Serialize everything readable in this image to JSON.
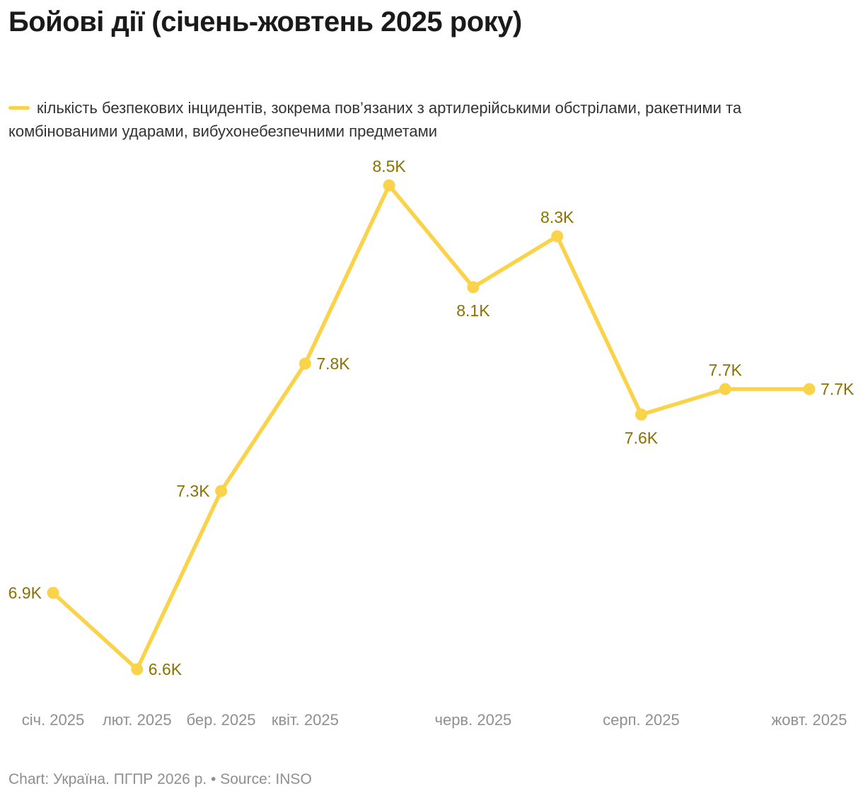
{
  "header": {
    "title": "Бойові дії (січень-жовтень 2025 року)"
  },
  "legend": {
    "label": "кількість безпекових інцидентів, зокрема пов’язаних з артилерійськими обстрілами, ракетними та комбінованими ударами, вибухонебезпечними предметами"
  },
  "footer": {
    "text": "Chart: Україна. ПГПР 2026 р. • Source: INSO"
  },
  "chart_data": {
    "type": "line",
    "title": "Бойові дії (січень-жовтень 2025 року)",
    "series_name": "кількість безпекових інцидентів, зокрема пов’язаних з артилерійськими обстрілами, ракетними та комбінованими ударами, вибухонебезпечними предметами",
    "points": [
      {
        "label": "6.9K",
        "value": 6.9,
        "label_pos": "left"
      },
      {
        "label": "6.6K",
        "value": 6.6,
        "label_pos": "right"
      },
      {
        "label": "7.3K",
        "value": 7.3,
        "label_pos": "left"
      },
      {
        "label": "7.8K",
        "value": 7.8,
        "label_pos": "right"
      },
      {
        "label": "8.5K",
        "value": 8.5,
        "label_pos": "above"
      },
      {
        "label": "8.1K",
        "value": 8.1,
        "label_pos": "below"
      },
      {
        "label": "8.3K",
        "value": 8.3,
        "label_pos": "above"
      },
      {
        "label": "7.6K",
        "value": 7.6,
        "label_pos": "below"
      },
      {
        "label": "7.7K",
        "value": 7.7,
        "label_pos": "above"
      },
      {
        "label": "7.7K",
        "value": 7.7,
        "label_pos": "right"
      }
    ],
    "x_tick_labels": [
      {
        "index": 0,
        "text": "січ. 2025"
      },
      {
        "index": 1,
        "text": "лют. 2025"
      },
      {
        "index": 2,
        "text": "бер. 2025"
      },
      {
        "index": 3,
        "text": "квіт. 2025"
      },
      {
        "index": 5,
        "text": "черв. 2025"
      },
      {
        "index": 7,
        "text": "серп. 2025"
      },
      {
        "index": 9,
        "text": "жовт. 2025"
      }
    ],
    "ylim": [
      6.6,
      8.5
    ],
    "grid": false,
    "legend_position": "top-left",
    "colors": {
      "line": "#FBD34A",
      "marker": "#FBD34A",
      "data_label": "#8A7100",
      "axis_label": "#909090"
    }
  }
}
